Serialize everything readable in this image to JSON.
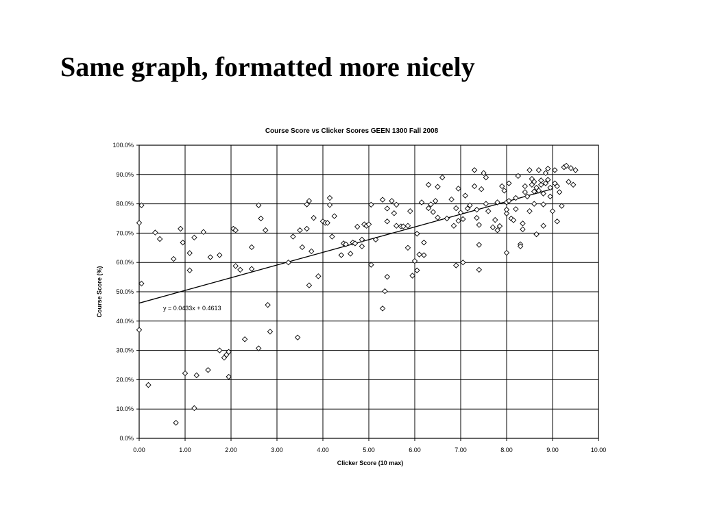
{
  "slide": {
    "title": "Same graph, formatted more nicely"
  },
  "chart_data": {
    "type": "scatter",
    "title": "Course Score vs Clicker Scores GEEN 1300 Fall 2008",
    "xlabel": "Clicker Score (10 max)",
    "ylabel": "Course Score (%)",
    "xlim": [
      0,
      10
    ],
    "ylim": [
      0,
      100
    ],
    "x_ticks": [
      "0.00",
      "1.00",
      "2.00",
      "3.00",
      "4.00",
      "5.00",
      "6.00",
      "7.00",
      "8.00",
      "9.00",
      "10.00"
    ],
    "y_ticks": [
      "0.0%",
      "10.0%",
      "20.0%",
      "30.0%",
      "40.0%",
      "50.0%",
      "60.0%",
      "70.0%",
      "80.0%",
      "90.0%",
      "100.0%"
    ],
    "grid": true,
    "marker": "diamond",
    "trendline": {
      "label": "y = 0.0433x + 0.4613",
      "slope": 4.33,
      "intercept": 46.13
    },
    "points": [
      [
        0.0,
        73.5
      ],
      [
        0.05,
        79.5
      ],
      [
        0.05,
        52.8
      ],
      [
        0.0,
        37
      ],
      [
        0.2,
        18.2
      ],
      [
        0.35,
        70.2
      ],
      [
        0.45,
        68
      ],
      [
        0.75,
        61.2
      ],
      [
        0.8,
        5.3
      ],
      [
        0.9,
        71.5
      ],
      [
        0.95,
        66.8
      ],
      [
        1.0,
        22.2
      ],
      [
        1.1,
        63.2
      ],
      [
        1.1,
        57.3
      ],
      [
        1.2,
        68.5
      ],
      [
        1.25,
        21.5
      ],
      [
        1.2,
        10.3
      ],
      [
        1.4,
        70.4
      ],
      [
        1.5,
        23.3
      ],
      [
        1.55,
        61.8
      ],
      [
        1.75,
        62.5
      ],
      [
        1.75,
        30
      ],
      [
        1.85,
        27.5
      ],
      [
        1.9,
        28.5
      ],
      [
        1.95,
        29.5
      ],
      [
        1.95,
        21
      ],
      [
        2.05,
        71.5
      ],
      [
        2.1,
        71
      ],
      [
        2.1,
        58.8
      ],
      [
        2.2,
        57.5
      ],
      [
        2.3,
        33.8
      ],
      [
        2.45,
        57.8
      ],
      [
        2.45,
        65.2
      ],
      [
        2.6,
        79.5
      ],
      [
        2.6,
        30.7
      ],
      [
        2.65,
        75
      ],
      [
        2.75,
        71
      ],
      [
        2.8,
        45.5
      ],
      [
        2.85,
        36.4
      ],
      [
        3.25,
        60
      ],
      [
        3.35,
        68.8
      ],
      [
        3.45,
        34.4
      ],
      [
        3.5,
        71
      ],
      [
        3.55,
        65.2
      ],
      [
        3.65,
        71.5
      ],
      [
        3.65,
        79.8
      ],
      [
        3.7,
        81
      ],
      [
        3.7,
        52.2
      ],
      [
        3.75,
        63.8
      ],
      [
        3.8,
        75.2
      ],
      [
        3.9,
        55.3
      ],
      [
        4.0,
        74
      ],
      [
        4.05,
        73.5
      ],
      [
        4.1,
        73.5
      ],
      [
        4.15,
        82
      ],
      [
        4.15,
        79.6
      ],
      [
        4.2,
        68.8
      ],
      [
        4.25,
        75.8
      ],
      [
        4.4,
        62.5
      ],
      [
        4.45,
        66.5
      ],
      [
        4.5,
        66.2
      ],
      [
        4.6,
        63
      ],
      [
        4.65,
        66.8
      ],
      [
        4.7,
        66.5
      ],
      [
        4.75,
        72.2
      ],
      [
        4.85,
        67.8
      ],
      [
        4.85,
        65.5
      ],
      [
        4.9,
        73
      ],
      [
        4.95,
        72.5
      ],
      [
        5.0,
        73
      ],
      [
        5.05,
        79.7
      ],
      [
        5.05,
        59.2
      ],
      [
        5.15,
        67.8
      ],
      [
        5.3,
        81.4
      ],
      [
        5.3,
        44.3
      ],
      [
        5.35,
        50.2
      ],
      [
        5.4,
        55.1
      ],
      [
        5.4,
        74
      ],
      [
        5.4,
        78.4
      ],
      [
        5.5,
        81
      ],
      [
        5.55,
        76.8
      ],
      [
        5.6,
        79.7
      ],
      [
        5.6,
        72.5
      ],
      [
        5.7,
        72.3
      ],
      [
        5.75,
        72.3
      ],
      [
        5.85,
        65
      ],
      [
        5.85,
        72.5
      ],
      [
        5.9,
        77.5
      ],
      [
        5.95,
        55.5
      ],
      [
        6.0,
        60.5
      ],
      [
        6.05,
        69.8
      ],
      [
        6.05,
        57.3
      ],
      [
        6.1,
        62.7
      ],
      [
        6.15,
        80.5
      ],
      [
        6.2,
        66.8
      ],
      [
        6.2,
        62.5
      ],
      [
        6.3,
        78.5
      ],
      [
        6.3,
        86.5
      ],
      [
        6.35,
        79.8
      ],
      [
        6.4,
        77.2
      ],
      [
        6.45,
        81
      ],
      [
        6.5,
        75.3
      ],
      [
        6.5,
        85.8
      ],
      [
        6.6,
        89
      ],
      [
        6.7,
        75
      ],
      [
        6.8,
        81.5
      ],
      [
        6.85,
        72.5
      ],
      [
        6.9,
        59
      ],
      [
        6.9,
        78.5
      ],
      [
        6.95,
        74.2
      ],
      [
        6.95,
        85.2
      ],
      [
        7.0,
        77
      ],
      [
        7.05,
        74.8
      ],
      [
        7.05,
        60
      ],
      [
        7.1,
        82.8
      ],
      [
        7.15,
        78.4
      ],
      [
        7.2,
        79.5
      ],
      [
        7.3,
        91.5
      ],
      [
        7.3,
        86
      ],
      [
        7.35,
        78
      ],
      [
        7.35,
        75.2
      ],
      [
        7.4,
        72.8
      ],
      [
        7.4,
        66
      ],
      [
        7.4,
        57.5
      ],
      [
        7.45,
        85
      ],
      [
        7.5,
        90.5
      ],
      [
        7.55,
        89
      ],
      [
        7.55,
        80
      ],
      [
        7.6,
        77.5
      ],
      [
        7.7,
        72
      ],
      [
        7.75,
        74.5
      ],
      [
        7.8,
        71
      ],
      [
        7.85,
        72.4
      ],
      [
        7.9,
        86
      ],
      [
        7.95,
        84.5
      ],
      [
        8.0,
        63.3
      ],
      [
        8.0,
        76.7
      ],
      [
        8.0,
        80.5
      ],
      [
        8.05,
        87
      ],
      [
        8.05,
        81
      ],
      [
        8.1,
        75
      ],
      [
        8.15,
        74.4
      ],
      [
        8.2,
        78.2
      ],
      [
        8.25,
        89.5
      ],
      [
        8.3,
        66.2
      ],
      [
        8.3,
        65.5
      ],
      [
        8.35,
        71.3
      ],
      [
        8.35,
        73.3
      ],
      [
        8.4,
        86
      ],
      [
        8.45,
        82.5
      ],
      [
        8.5,
        91.5
      ],
      [
        8.5,
        77.5
      ],
      [
        8.55,
        88.5
      ],
      [
        8.6,
        87.5
      ],
      [
        8.6,
        84.2
      ],
      [
        8.6,
        80
      ],
      [
        8.65,
        69.6
      ],
      [
        8.7,
        91.5
      ],
      [
        8.75,
        86.5
      ],
      [
        8.75,
        88
      ],
      [
        8.8,
        72.5
      ],
      [
        8.8,
        79.8
      ],
      [
        8.85,
        87
      ],
      [
        8.85,
        90.5
      ],
      [
        8.9,
        88.2
      ],
      [
        8.9,
        92
      ],
      [
        8.95,
        82.5
      ],
      [
        9.0,
        77.5
      ],
      [
        9.05,
        87
      ],
      [
        9.05,
        91.5
      ],
      [
        9.1,
        74
      ],
      [
        9.15,
        84
      ],
      [
        9.2,
        79.3
      ],
      [
        9.25,
        92.5
      ],
      [
        9.3,
        93
      ],
      [
        9.35,
        87.5
      ],
      [
        9.4,
        92.2
      ],
      [
        9.45,
        86.5
      ],
      [
        9.5,
        91.5
      ],
      [
        8.55,
        86.5
      ],
      [
        8.65,
        85.5
      ],
      [
        8.7,
        84.5
      ],
      [
        8.8,
        83.5
      ],
      [
        8.95,
        85.5
      ],
      [
        9.1,
        86
      ],
      [
        8.4,
        84
      ],
      [
        8.2,
        82
      ],
      [
        8.0,
        78
      ],
      [
        7.8,
        80.5
      ]
    ]
  }
}
